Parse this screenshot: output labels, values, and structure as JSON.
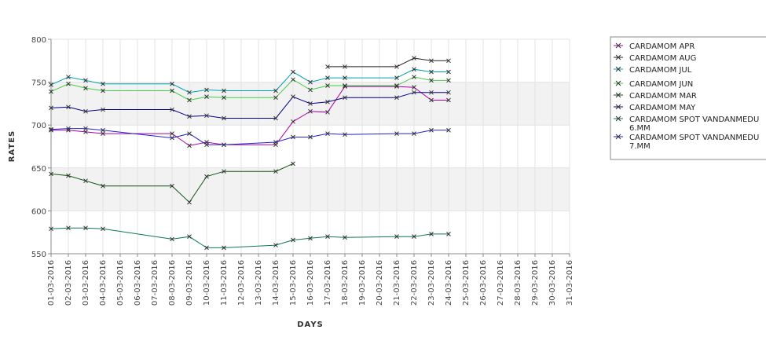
{
  "chart_data": {
    "type": "line",
    "xlabel": "DAYS",
    "ylabel": "RATES",
    "ylim": [
      550,
      800
    ],
    "yticks": [
      550,
      600,
      650,
      700,
      750,
      800
    ],
    "grid": true,
    "legend_position": "right",
    "categories": [
      "01-03-2016",
      "02-03-2016",
      "03-03-2016",
      "04-03-2016",
      "05-03-2016",
      "06-03-2016",
      "07-03-2016",
      "08-03-2016",
      "09-03-2016",
      "10-03-2016",
      "11-03-2016",
      "12-03-2016",
      "13-03-2016",
      "14-03-2016",
      "15-03-2016",
      "16-03-2016",
      "17-03-2016",
      "18-03-2016",
      "19-03-2016",
      "20-03-2016",
      "21-03-2016",
      "22-03-2016",
      "23-03-2016",
      "24-03-2016",
      "25-03-2016",
      "26-03-2016",
      "27-03-2016",
      "28-03-2016",
      "29-03-2016",
      "30-03-2016",
      "31-03-2016"
    ],
    "series": [
      {
        "name": "CARDAMOM APR",
        "color": "#aa00aa",
        "values": [
          694,
          694,
          692,
          690,
          null,
          null,
          null,
          690,
          676,
          680,
          677,
          null,
          null,
          677,
          704,
          716,
          715,
          745,
          null,
          null,
          745,
          744,
          729,
          729,
          null,
          null,
          null,
          null,
          null,
          null,
          null
        ]
      },
      {
        "name": "CARDAMOM AUG",
        "color": "#222222",
        "values": [
          null,
          null,
          null,
          null,
          null,
          null,
          null,
          null,
          null,
          null,
          null,
          null,
          null,
          null,
          null,
          null,
          768,
          768,
          null,
          null,
          768,
          778,
          775,
          775,
          null,
          null,
          null,
          null,
          null,
          null,
          null
        ]
      },
      {
        "name": "CARDAMOM JUL",
        "color": "#00a0b0",
        "values": [
          747,
          756,
          752,
          748,
          null,
          null,
          null,
          748,
          738,
          741,
          740,
          null,
          null,
          740,
          762,
          750,
          755,
          755,
          null,
          null,
          755,
          765,
          762,
          762,
          null,
          null,
          null,
          null,
          null,
          null,
          null
        ]
      },
      {
        "name": "CARDAMOM JUN",
        "color": "#44cc44",
        "values": [
          739,
          748,
          743,
          740,
          null,
          null,
          null,
          740,
          729,
          733,
          732,
          null,
          null,
          732,
          753,
          741,
          746,
          746,
          null,
          null,
          746,
          756,
          752,
          752,
          null,
          null,
          null,
          null,
          null,
          null,
          null
        ]
      },
      {
        "name": "CARDAMOM MAR",
        "color": "#115511",
        "values": [
          643,
          641,
          635,
          629,
          null,
          null,
          null,
          629,
          610,
          640,
          646,
          null,
          null,
          646,
          655,
          null,
          null,
          null,
          null,
          null,
          null,
          null,
          null,
          null,
          null,
          null,
          null,
          null,
          null,
          null,
          null
        ]
      },
      {
        "name": "CARDAMOM MAY",
        "color": "#000088",
        "values": [
          720,
          721,
          716,
          718,
          null,
          null,
          null,
          718,
          710,
          711,
          708,
          null,
          null,
          708,
          733,
          725,
          727,
          732,
          null,
          null,
          732,
          738,
          738,
          738,
          null,
          null,
          null,
          null,
          null,
          null,
          null
        ]
      },
      {
        "name": "CARDAMOM SPOT VANDANMEDU 6.MM",
        "color": "#117755",
        "values": [
          579,
          580,
          580,
          579,
          null,
          null,
          null,
          567,
          570,
          557,
          557,
          null,
          null,
          560,
          566,
          568,
          570,
          569,
          null,
          null,
          570,
          570,
          573,
          573,
          null,
          null,
          null,
          null,
          null,
          null,
          null
        ]
      },
      {
        "name": "CARDAMOM SPOT VANDANMEDU 7.MM",
        "color": "#2222cc",
        "values": [
          695,
          696,
          696,
          694,
          null,
          null,
          null,
          685,
          690,
          677,
          677,
          null,
          null,
          680,
          686,
          686,
          690,
          689,
          null,
          null,
          690,
          690,
          694,
          694,
          null,
          null,
          null,
          null,
          null,
          null,
          null
        ]
      }
    ]
  }
}
